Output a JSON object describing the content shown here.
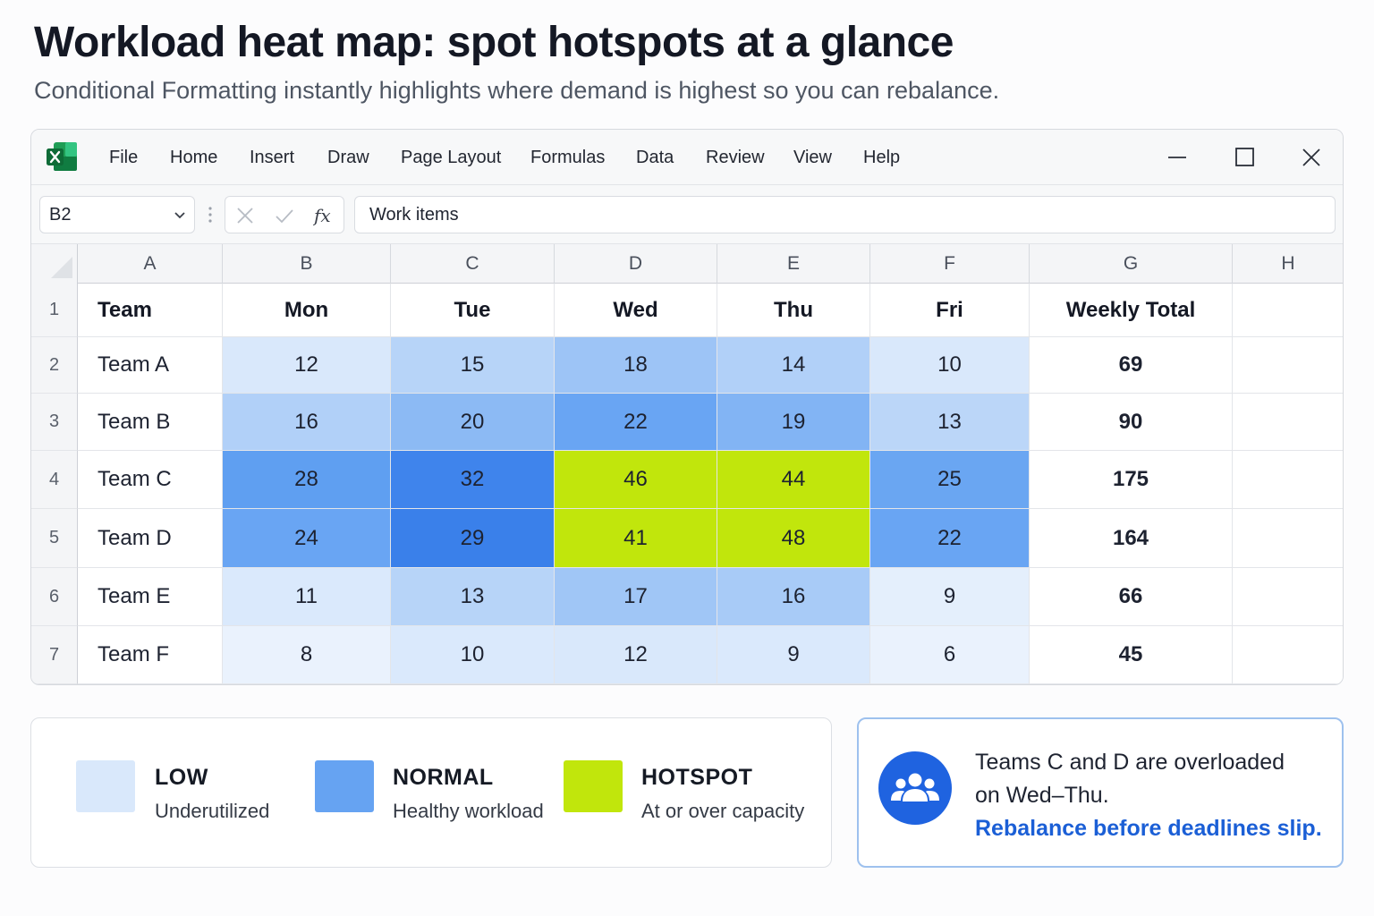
{
  "page": {
    "headline": "Workload heat map: spot hotspots at a glance",
    "subhead": "Conditional Formatting instantly highlights where demand is highest so you can rebalance."
  },
  "app": {
    "logo_icon": "excel-logo-icon",
    "menu": [
      "File",
      "Home",
      "Insert",
      "Draw",
      "Page Layout",
      "Formulas",
      "Data",
      "Review",
      "View",
      "Help"
    ],
    "window_controls": [
      "minimize-icon",
      "maximize-icon",
      "close-icon"
    ]
  },
  "formula_bar": {
    "name_box": "B2",
    "formula": "Work items"
  },
  "sheet": {
    "columns": [
      "A",
      "B",
      "C",
      "D",
      "E",
      "F",
      "G",
      "H"
    ],
    "row_numbers": [
      "1",
      "2",
      "3",
      "4",
      "5",
      "6",
      "7"
    ],
    "headers": [
      "Team",
      "Mon",
      "Tue",
      "Wed",
      "Thu",
      "Fri",
      "Weekly Total"
    ],
    "rows": [
      {
        "team": "Team A",
        "values": [
          "12",
          "15",
          "18",
          "14",
          "10"
        ],
        "total": "69"
      },
      {
        "team": "Team B",
        "values": [
          "16",
          "20",
          "22",
          "19",
          "13"
        ],
        "total": "90"
      },
      {
        "team": "Team C",
        "values": [
          "28",
          "32",
          "46",
          "44",
          "25"
        ],
        "total": "175"
      },
      {
        "team": "Team D",
        "values": [
          "24",
          "29",
          "41",
          "48",
          "22"
        ],
        "total": "164"
      },
      {
        "team": "Team E",
        "values": [
          "11",
          "13",
          "17",
          "16",
          "9"
        ],
        "total": "66"
      },
      {
        "team": "Team F",
        "values": [
          "8",
          "10",
          "12",
          "9",
          "6"
        ],
        "total": "45"
      }
    ],
    "cell_colors": [
      [
        "#d9e8fb",
        "#b7d4f8",
        "#9dc4f6",
        "#b1d0f8",
        "#d9e8fb"
      ],
      [
        "#b1d0f8",
        "#8cbaf4",
        "#69a5f3",
        "#82b4f4",
        "#bbd6f8"
      ],
      [
        "#5f9ff1",
        "#3f84ec",
        "#c1e60c",
        "#c1e60c",
        "#6aa6f2"
      ],
      [
        "#69a5f3",
        "#3a80ea",
        "#c1e60c",
        "#c1e60c",
        "#69a5f3"
      ],
      [
        "#dae9fc",
        "#b7d4f8",
        "#a0c6f6",
        "#a8cbf7",
        "#e4effc"
      ],
      [
        "#eaf2fd",
        "#dae9fc",
        "#d9e8fb",
        "#dae9fc",
        "#eaf2fd"
      ]
    ]
  },
  "legend": [
    {
      "title": "LOW",
      "desc": "Underutilized",
      "color": "#d9e8fb"
    },
    {
      "title": "NORMAL",
      "desc": "Healthy workload",
      "color": "#66a3f2"
    },
    {
      "title": "HOTSPOT",
      "desc": "At or over capacity",
      "color": "#c1e60c"
    }
  ],
  "callout": {
    "icon": "team-group-icon",
    "line1": "Teams C and D are overloaded",
    "line2": "on Wed–Thu.",
    "cta": "Rebalance before deadlines slip."
  }
}
